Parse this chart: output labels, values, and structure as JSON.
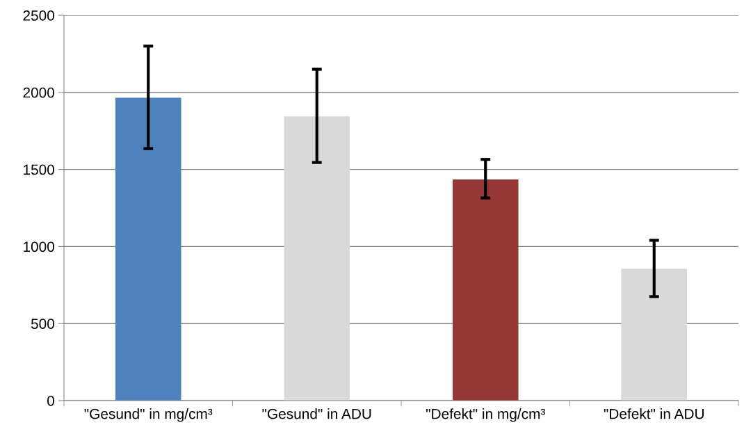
{
  "chart_data": {
    "type": "bar",
    "categories": [
      "\"Gesund\" in mg/cm³",
      "\"Gesund\" in ADU",
      "\"Defekt\" in mg/cm³",
      "\"Defekt\" in ADU"
    ],
    "values": [
      1965,
      1845,
      1435,
      855
    ],
    "colors": [
      "#4f81bd",
      "#d9d9d9",
      "#953735",
      "#d9d9d9"
    ],
    "errors": [
      [
        1635,
        2300
      ],
      [
        1545,
        2150
      ],
      [
        1315,
        1565
      ],
      [
        675,
        1040
      ]
    ],
    "ylim": [
      0,
      2500
    ],
    "yticks": [
      0,
      500,
      1000,
      1500,
      2000,
      2500
    ],
    "grid": "y"
  }
}
